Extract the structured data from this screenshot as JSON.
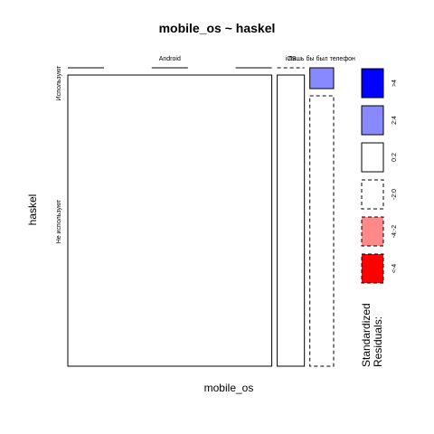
{
  "chart_data": {
    "type": "mosaic",
    "title": "mobile_os ~ haskel",
    "xlabel": "mobile_os",
    "ylabel": "haskel",
    "columns": [
      "Android",
      "iOS",
      "Лишь бы был телефон"
    ],
    "rows": [
      "Используют",
      "Не используют"
    ],
    "cells": [
      {
        "column": "Android",
        "row": "Используют",
        "count": 0,
        "residual_bin": "0:2"
      },
      {
        "column": "Android",
        "row": "Не используют",
        "count": 120,
        "residual_bin": "0:2"
      },
      {
        "column": "iOS",
        "row": "Используют",
        "count": 0,
        "residual_bin": "-2:0"
      },
      {
        "column": "iOS",
        "row": "Не используют",
        "count": 16,
        "residual_bin": "0:2"
      },
      {
        "column": "Лишь бы был телефон",
        "row": "Используют",
        "count": 1,
        "residual_bin": "2:4"
      },
      {
        "column": "Лишь бы был телефон",
        "row": "Не используют",
        "count": 13,
        "residual_bin": "-2:0"
      }
    ],
    "legend": {
      "title": [
        "Standardized",
        "Residuals:"
      ],
      "placement": "right",
      "bins": [
        {
          "label": ">4",
          "fill": "#0000ff",
          "border": "solid"
        },
        {
          "label": "2:4",
          "fill": "#8888ff",
          "border": "solid"
        },
        {
          "label": "0:2",
          "fill": "#ffffff",
          "border": "solid"
        },
        {
          "label": "-2:0",
          "fill": "#ffffff",
          "border": "dashed"
        },
        {
          "label": "-4:-2",
          "fill": "#ff8888",
          "border": "dashed"
        },
        {
          "label": "<-4",
          "fill": "#ff0000",
          "border": "dashed"
        }
      ]
    }
  }
}
